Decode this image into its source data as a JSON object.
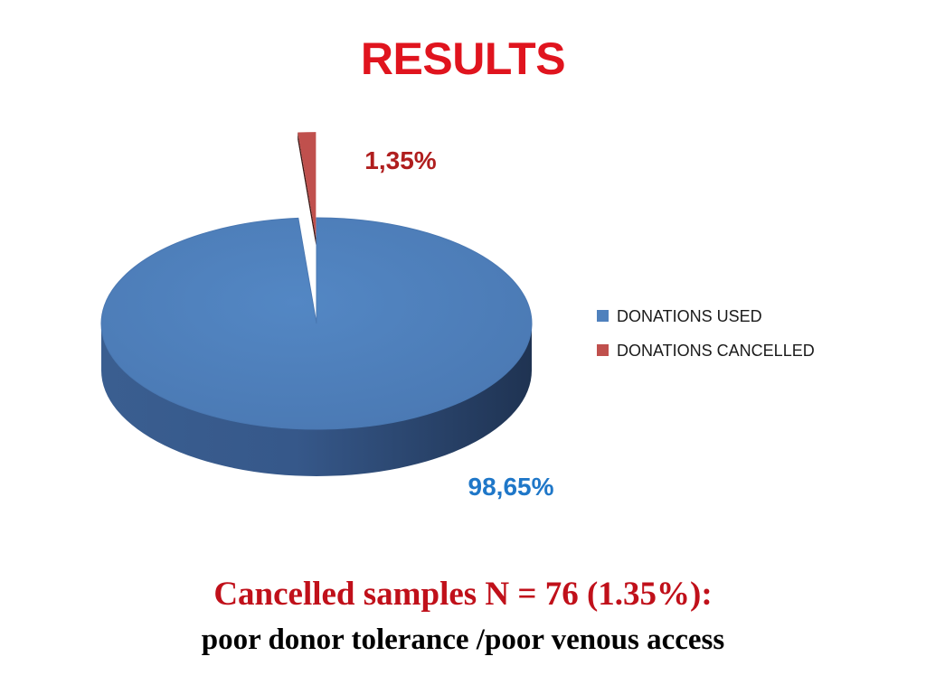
{
  "slide": {
    "title": "RESULTS",
    "caption_main": "Cancelled samples N = 76 (1.35%):",
    "caption_sub": "poor donor tolerance /poor venous  access"
  },
  "colors": {
    "title": "#e0141e",
    "used": "#4f81bd",
    "used_label": "#1f77c8",
    "cancelled": "#c0504d",
    "cancelled_label": "#b01e1e"
  },
  "chart_data": {
    "type": "pie",
    "style": "3d",
    "legend_position": "right",
    "series": [
      {
        "name": "DONATIONS USED",
        "value": 98.65,
        "label": "98,65%",
        "color": "#4f81bd"
      },
      {
        "name": "DONATIONS CANCELLED",
        "value": 1.35,
        "label": "1,35%",
        "color": "#c0504d",
        "exploded": true
      }
    ]
  }
}
